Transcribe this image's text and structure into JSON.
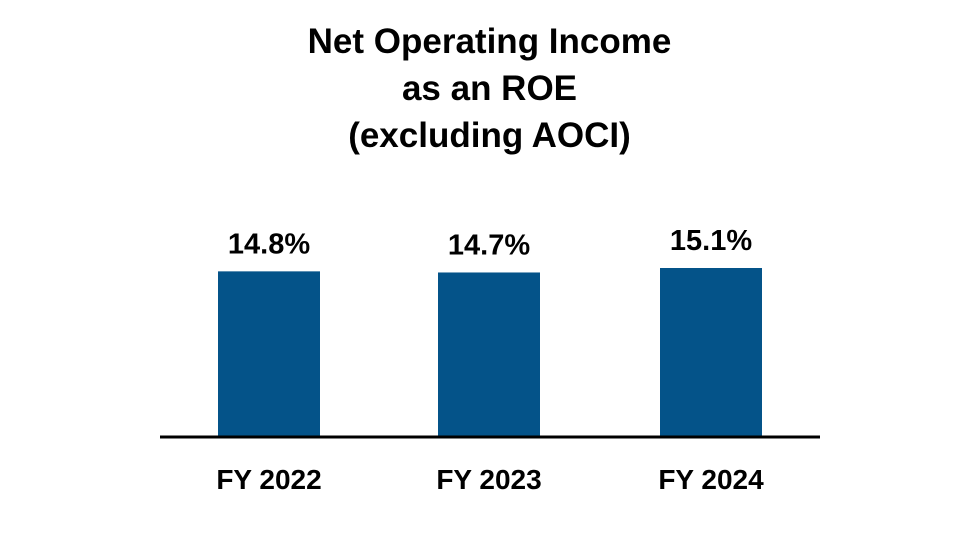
{
  "title_lines": [
    "Net Operating Income",
    "as an ROE",
    "(excluding AOCI)"
  ],
  "colors": {
    "bar": "#045389",
    "axis": "#000000",
    "text": "#000000",
    "background": "#ffffff"
  },
  "chart_data": {
    "type": "bar",
    "title": "Net Operating Income as an ROE (excluding AOCI)",
    "categories": [
      "FY 2022",
      "FY 2023",
      "FY 2024"
    ],
    "values": [
      14.8,
      14.7,
      15.1
    ],
    "data_labels": [
      "14.8%",
      "14.7%",
      "15.1%"
    ],
    "unit": "%",
    "xlabel": "",
    "ylabel": "",
    "ylim": [
      0,
      15.1
    ],
    "grid": false,
    "legend": "none"
  }
}
